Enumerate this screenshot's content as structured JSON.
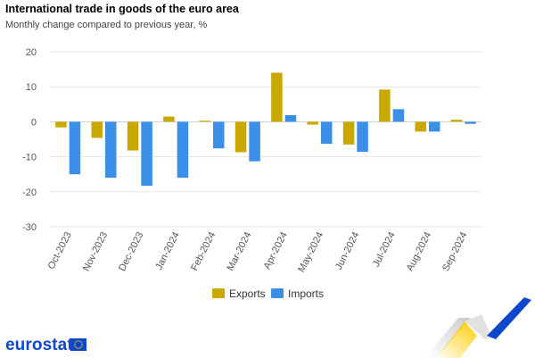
{
  "chart_data": {
    "type": "bar",
    "title": "International trade in goods of the euro area",
    "subtitle": "Monthly change compared to previous year, %",
    "categories": [
      "Oct-2023",
      "Nov-2023",
      "Dec-2023",
      "Jan-2024",
      "Feb-2024",
      "Mar-2024",
      "Apr-2024",
      "May-2024",
      "Jun-2024",
      "Jul-2024",
      "Aug-2024",
      "Sep-2024"
    ],
    "series": [
      {
        "name": "Exports",
        "color": "#c9a800",
        "values": [
          -1.6,
          -4.6,
          -8.2,
          1.5,
          0.3,
          -8.7,
          14.0,
          -0.8,
          -6.5,
          9.2,
          -2.8,
          0.6
        ]
      },
      {
        "name": "Imports",
        "color": "#3c8fe6",
        "values": [
          -15.0,
          -16.0,
          -18.3,
          -16.0,
          -7.6,
          -11.3,
          1.9,
          -6.3,
          -8.6,
          3.6,
          -2.8,
          -0.6
        ]
      }
    ],
    "ylim": [
      -30,
      20
    ],
    "yticks": [
      20,
      10,
      0,
      -10,
      -20,
      -30
    ],
    "grid": true,
    "legend_position": "bottom"
  },
  "branding": {
    "name": "eurostat",
    "flag_color": "#0e47cb",
    "stripe_colors": [
      "#ffcc00",
      "#0e47cb"
    ]
  }
}
